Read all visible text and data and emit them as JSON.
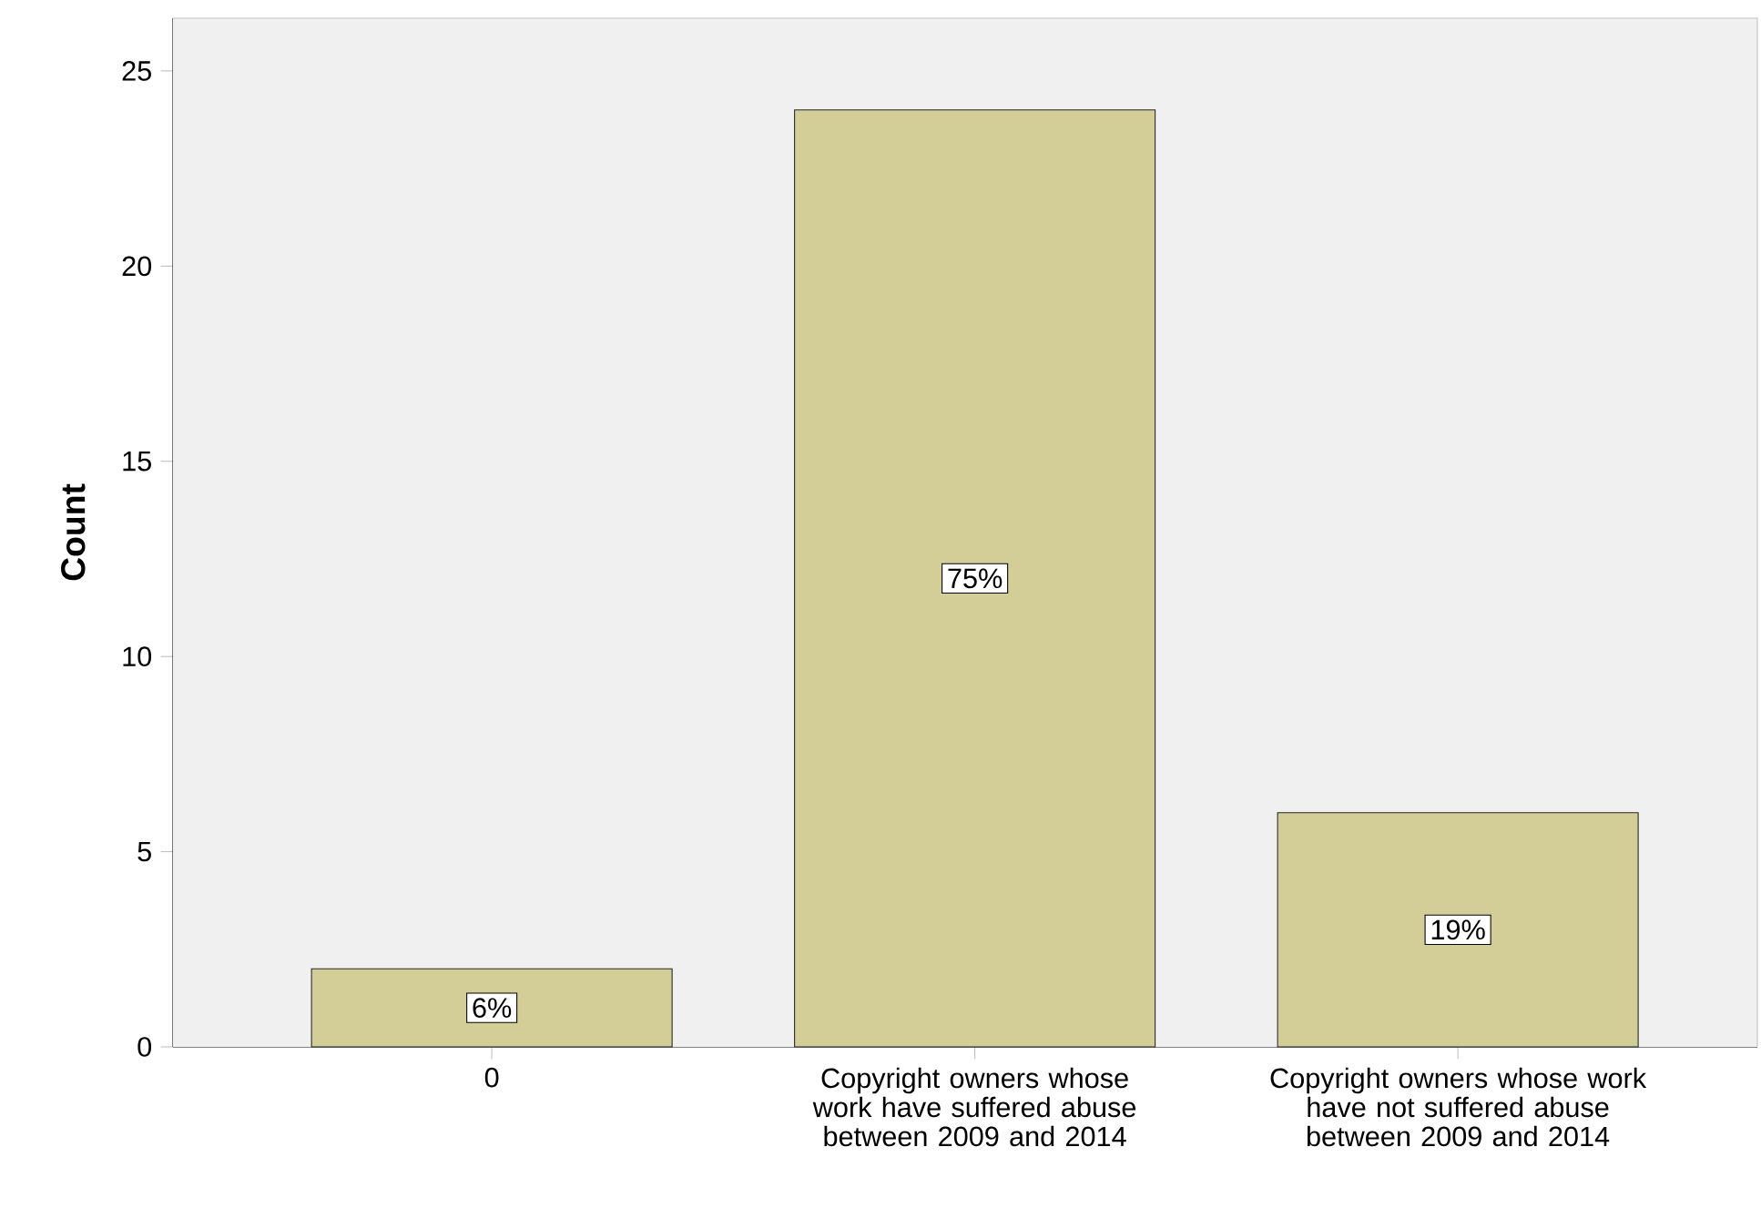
{
  "chart_data": {
    "type": "bar",
    "ylabel": "Count",
    "categories": [
      "0",
      "Copyright owners whose work have suffered abuse between 2009 and 2014",
      "Copyright owners whose work have not suffered abuse between 2009 and 2014"
    ],
    "values": [
      2,
      24,
      6
    ],
    "annotations": [
      {
        "text": "6%",
        "x": "0",
        "y": 1
      },
      {
        "text": "75%",
        "x": "Copyright owners whose work have suffered abuse between 2009 and 2014",
        "y": 12
      },
      {
        "text": "19%",
        "x": "Copyright owners whose work have not suffered abuse between 2009 and 2014",
        "y": 3
      }
    ],
    "color": "#d3ce97",
    "ylim": [
      0,
      26.35
    ],
    "yticks": [
      0,
      5,
      10,
      15,
      20,
      25
    ]
  }
}
